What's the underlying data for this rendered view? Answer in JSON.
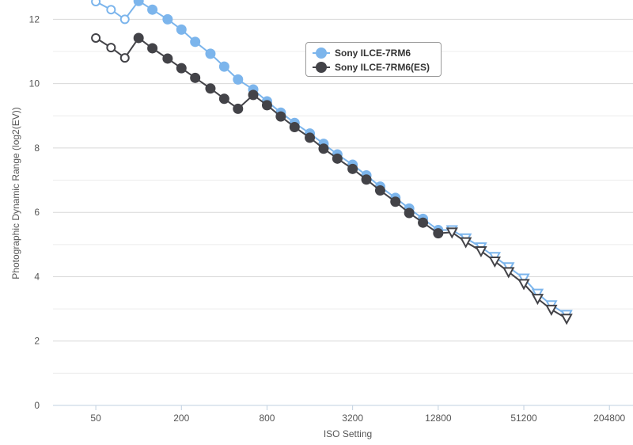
{
  "colors": {
    "series1": "#7cb5ec",
    "series2": "#434348",
    "grid": "#d8d8d8",
    "axis": "#c0d0e0",
    "text": "#555555"
  },
  "legend": {
    "items": [
      {
        "label": "Sony ILCE-7RM6"
      },
      {
        "label": "Sony ILCE-7RM6(ES)"
      }
    ]
  },
  "chart_data": {
    "type": "line",
    "xlabel": "ISO Setting",
    "ylabel": "Photographic Dynamic Range (log2(EV))",
    "x_scale": "log2",
    "xlim": [
      25,
      300000
    ],
    "ylim": [
      0,
      12.6
    ],
    "x_ticks": [
      50,
      200,
      800,
      3200,
      12800,
      51200,
      204800
    ],
    "x_tick_labels": [
      "50",
      "200",
      "800",
      "3200",
      "12800",
      "51200",
      "204800"
    ],
    "y_ticks": [
      0,
      2,
      4,
      6,
      8,
      10,
      12
    ],
    "y_tick_labels": [
      "0",
      "2",
      "4",
      "6",
      "8",
      "10",
      "12"
    ],
    "grid": true,
    "legend_position": "top-center",
    "x": [
      50,
      64,
      80,
      100,
      125,
      160,
      200,
      250,
      320,
      400,
      500,
      640,
      800,
      1000,
      1250,
      1600,
      2000,
      2500,
      3200,
      4000,
      5000,
      6400,
      8000,
      10000,
      12800,
      16000,
      20000,
      25600,
      32000,
      40000,
      51200,
      64000,
      80000,
      102400
    ],
    "series": [
      {
        "name": "Sony ILCE-7RM6",
        "values": [
          12.55,
          12.3,
          12.0,
          12.57,
          12.3,
          12.0,
          11.68,
          11.3,
          10.93,
          10.53,
          10.13,
          9.82,
          9.45,
          9.1,
          8.78,
          8.45,
          8.13,
          7.8,
          7.48,
          7.15,
          6.8,
          6.45,
          6.12,
          5.8,
          5.45,
          5.45,
          5.2,
          4.92,
          4.62,
          4.3,
          3.95,
          3.48,
          3.12,
          2.82
        ],
        "marker_style": [
          "hollow-circle",
          "hollow-circle",
          "hollow-circle",
          "circle",
          "circle",
          "circle",
          "circle",
          "circle",
          "circle",
          "circle",
          "circle",
          "circle",
          "circle",
          "circle",
          "circle",
          "circle",
          "circle",
          "circle",
          "circle",
          "circle",
          "circle",
          "circle",
          "circle",
          "circle",
          "circle",
          "triangle-down",
          "triangle-down",
          "triangle-down",
          "triangle-down",
          "triangle-down",
          "triangle-down",
          "triangle-down",
          "triangle-down",
          "triangle-down"
        ]
      },
      {
        "name": "Sony ILCE-7RM6(ES)",
        "values": [
          11.42,
          11.12,
          10.8,
          11.42,
          11.1,
          10.78,
          10.48,
          10.18,
          9.85,
          9.53,
          9.22,
          9.65,
          9.33,
          8.98,
          8.65,
          8.32,
          7.98,
          7.67,
          7.35,
          7.02,
          6.68,
          6.33,
          5.98,
          5.68,
          5.35,
          5.38,
          5.08,
          4.8,
          4.48,
          4.15,
          3.78,
          3.32,
          2.98,
          2.7
        ],
        "marker_style": [
          "hollow-circle",
          "hollow-circle",
          "hollow-circle",
          "circle",
          "circle",
          "circle",
          "circle",
          "circle",
          "circle",
          "circle",
          "circle",
          "circle",
          "circle",
          "circle",
          "circle",
          "circle",
          "circle",
          "circle",
          "circle",
          "circle",
          "circle",
          "circle",
          "circle",
          "circle",
          "circle",
          "triangle-down",
          "triangle-down",
          "triangle-down",
          "triangle-down",
          "triangle-down",
          "triangle-down",
          "triangle-down",
          "triangle-down",
          "triangle-down"
        ]
      }
    ]
  }
}
